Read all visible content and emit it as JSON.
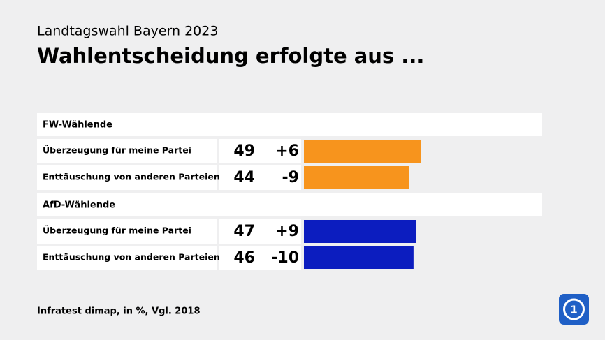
{
  "chart_data": {
    "type": "bar",
    "overline": "Landtagswahl Bayern 2023",
    "title": "Wahlentscheidung erfolgte aus ...",
    "xlim": [
      0,
      100
    ],
    "groups": [
      {
        "name": "FW-Wählende",
        "color": "#f7941d",
        "categories": [
          "Überzeugung für meine Partei",
          "Enttäuschung von anderen Parteien"
        ],
        "values": [
          49,
          44
        ],
        "changes": [
          6,
          -9
        ],
        "change_labels": [
          "+6",
          "-9"
        ]
      },
      {
        "name": "AfD-Wählende",
        "color": "#0c1dbf",
        "categories": [
          "Überzeugung für meine Partei",
          "Enttäuschung von anderen Parteien"
        ],
        "values": [
          47,
          46
        ],
        "changes": [
          9,
          -10
        ],
        "change_labels": [
          "+9",
          "-10"
        ]
      }
    ],
    "source": "Infratest dimap, in %, Vgl. 2018"
  }
}
